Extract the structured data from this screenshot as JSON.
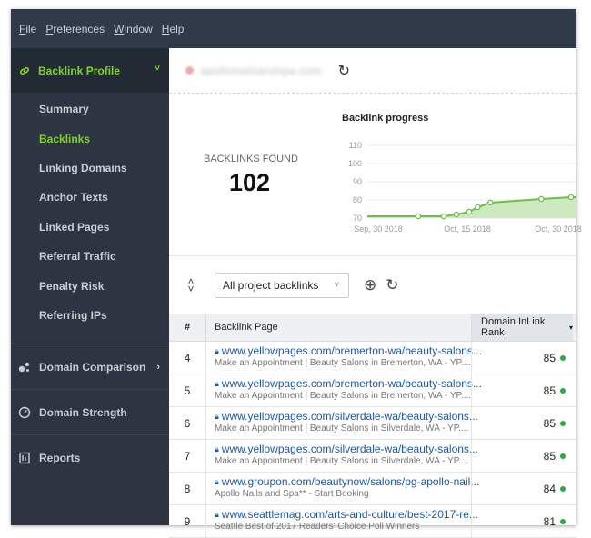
{
  "menu": {
    "items": [
      {
        "first": "F",
        "rest": "ile"
      },
      {
        "first": "P",
        "rest": "references"
      },
      {
        "first": "W",
        "rest": "indow"
      },
      {
        "first": "H",
        "rest": "elp"
      }
    ]
  },
  "sidebar": {
    "active_section": "Backlink Profile",
    "sub_items": [
      "Summary",
      "Backlinks",
      "Linking Domains",
      "Anchor Texts",
      "Linked Pages",
      "Referral Traffic",
      "Penalty Risk",
      "Referring IPs"
    ],
    "active_sub": "Backlinks",
    "sections": [
      "Domain Comparison",
      "Domain Strength",
      "Reports"
    ]
  },
  "project": {
    "domain": "apollonailsandspa.com"
  },
  "stats": {
    "found_label": "BACKLINKS FOUND",
    "found_value": "102"
  },
  "chart_data": {
    "type": "line",
    "title": "Backlink progress",
    "y_ticks": [
      "110",
      "100",
      "90",
      "80",
      "70"
    ],
    "x_ticks": [
      "Sep, 30 2018",
      "Oct, 15 2018",
      "Oct, 30 2018"
    ],
    "ylim": [
      68,
      112
    ],
    "series": [
      {
        "x_days": [
          0,
          12,
          18,
          21,
          24,
          26,
          29,
          41,
          48
        ],
        "values": [
          71,
          71,
          71,
          72,
          73.5,
          76,
          78.5,
          80.5,
          81.5
        ]
      }
    ],
    "x_range_days": [
      0,
      48
    ],
    "colors": {
      "line": "#6cc04a",
      "fill": "#cde9c0"
    }
  },
  "toolbar": {
    "filter_value": "All project backlinks"
  },
  "table": {
    "headers": {
      "num": "#",
      "page": "Backlink Page",
      "rank": "Domain InLink Rank"
    },
    "rows": [
      {
        "num": "4",
        "url": "www.yellowpages.com/bremerton-wa/beauty-salons...",
        "desc": "Make an Appointment | Beauty Salons in Bremerton, WA - YP....",
        "rank": "85"
      },
      {
        "num": "5",
        "url": "www.yellowpages.com/bremerton-wa/beauty-salons...",
        "desc": "Make an Appointment | Beauty Salons in Bremerton, WA - YP....",
        "rank": "85"
      },
      {
        "num": "6",
        "url": "www.yellowpages.com/silverdale-wa/beauty-salons...",
        "desc": "Make an Appointment | Beauty Salons in Silverdale, WA - YP....",
        "rank": "85"
      },
      {
        "num": "7",
        "url": "www.yellowpages.com/silverdale-wa/beauty-salons...",
        "desc": "Make an Appointment | Beauty Salons in Silverdale, WA - YP....",
        "rank": "85"
      },
      {
        "num": "8",
        "url": "www.groupon.com/beautynow/salons/pg-apollo-nail...",
        "desc": "Apollo Nails and Spa** - Start Booking",
        "rank": "84"
      },
      {
        "num": "9",
        "url": "www.seattlemag.com/arts-and-culture/best-2017-re...",
        "desc": "Seattle Best of 2017 Readers' Choice Poll Winners",
        "rank": "81"
      }
    ]
  }
}
